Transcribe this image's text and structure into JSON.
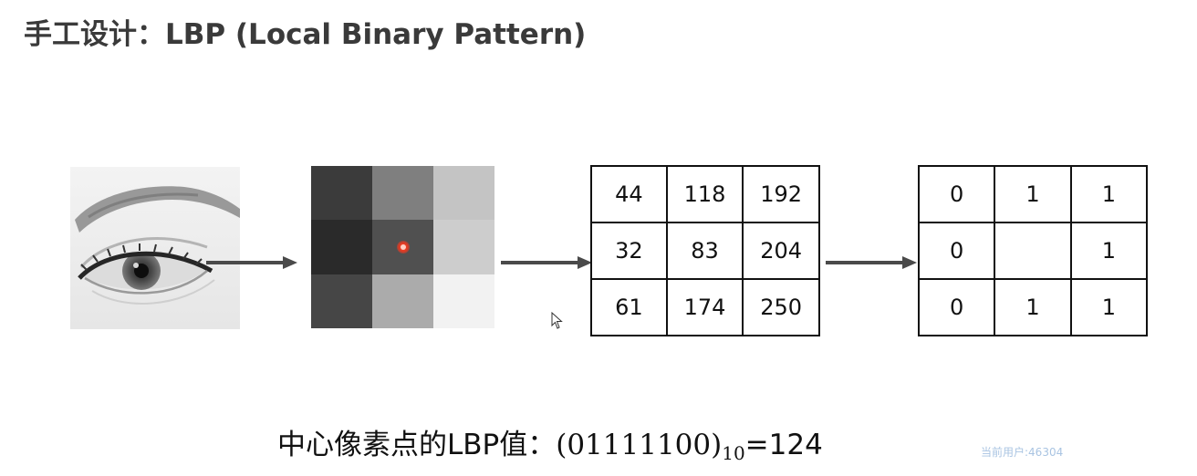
{
  "title": "手工设计：LBP (Local Binary Pattern)",
  "pixel_grid": {
    "gray_levels": [
      "#3b3b3b",
      "#7f7f7f",
      "#c4c4c4",
      "#2a2a2a",
      "#505050",
      "#cdcdcd",
      "#464646",
      "#ababab",
      "#f2f2f2"
    ],
    "center_marker_color": "#e23a22"
  },
  "value_grid": {
    "rows": [
      [
        "44",
        "118",
        "192"
      ],
      [
        "32",
        "83",
        "204"
      ],
      [
        "61",
        "174",
        "250"
      ]
    ]
  },
  "binary_grid": {
    "rows": [
      [
        "0",
        "1",
        "1"
      ],
      [
        "0",
        "",
        "1"
      ],
      [
        "0",
        "1",
        "1"
      ]
    ]
  },
  "formula": {
    "label": "中心像素点的LBP值：",
    "binary": "(01111100)",
    "base": "10",
    "result": "=124"
  },
  "watermark": "当前用户:46304",
  "colors": {
    "arrow": "#4a4a4a",
    "text": "#111111",
    "title": "#3a3a3a",
    "watermark": "#a9c4e2"
  }
}
